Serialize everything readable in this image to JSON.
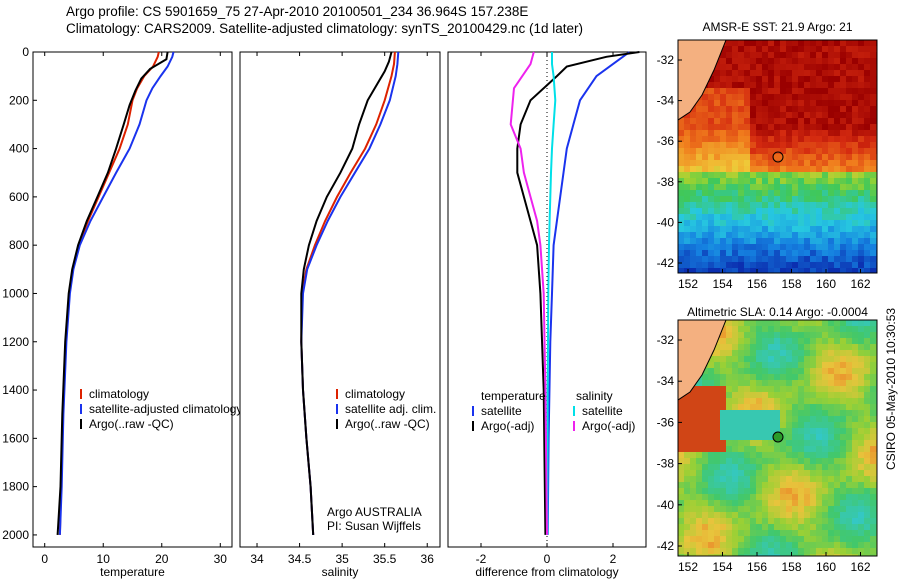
{
  "header": {
    "line1": "Argo profile: CS 5901659_75 27-Apr-2010 20100501_234 36.964S 157.238E",
    "line2": "Climatology: CARS2009. Satellite-adjusted climatology: synTS_20100429.nc (1d later)"
  },
  "colors": {
    "climatology": "#dd2200",
    "satellite": "#1a33ee",
    "argo": "#000000",
    "salinity_satellite": "#00e0e8",
    "salinity_argo": "#ee22ee"
  },
  "chart_data": [
    {
      "type": "line",
      "id": "temperature",
      "xlabel": "temperature",
      "xlim": [
        -2,
        32
      ],
      "ylim": [
        2050,
        0
      ],
      "xticks": [
        0,
        10,
        20,
        30
      ],
      "yticks": [
        0,
        200,
        400,
        600,
        800,
        1000,
        1200,
        1400,
        1600,
        1800,
        2000
      ],
      "legend": [
        "climatology",
        "satellite-adjusted climatology",
        "Argo(..raw -QC)"
      ],
      "series": [
        {
          "name": "climatology",
          "color": "#dd2200",
          "x": [
            19.5,
            19.3,
            18.5,
            17.0,
            15.8,
            15.0,
            14.2,
            12.8,
            11.0,
            9.2,
            7.4,
            5.8,
            4.8,
            4.2,
            3.6,
            3.1,
            2.8,
            2.6
          ],
          "y": [
            0,
            20,
            60,
            100,
            150,
            200,
            300,
            400,
            500,
            600,
            700,
            800,
            900,
            1000,
            1200,
            1500,
            1800,
            2000
          ]
        },
        {
          "name": "satellite-adjusted climatology",
          "color": "#1a33ee",
          "x": [
            22.0,
            21.8,
            21.0,
            19.8,
            18.4,
            17.4,
            16.2,
            14.5,
            12.2,
            10.0,
            7.8,
            6.0,
            4.9,
            4.3,
            3.7,
            3.2,
            2.9,
            2.6
          ],
          "y": [
            0,
            20,
            60,
            100,
            150,
            200,
            300,
            400,
            500,
            600,
            700,
            800,
            900,
            1000,
            1200,
            1500,
            1800,
            2000
          ]
        },
        {
          "name": "Argo(..raw -QC)",
          "color": "#000000",
          "x": [
            21.0,
            20.8,
            18.0,
            16.5,
            15.5,
            14.5,
            13.5,
            12.2,
            10.8,
            9.0,
            7.2,
            5.7,
            4.7,
            4.1,
            3.5,
            3.0,
            2.7,
            2.2
          ],
          "y": [
            0,
            30,
            70,
            110,
            160,
            220,
            300,
            400,
            500,
            600,
            700,
            800,
            900,
            1000,
            1200,
            1500,
            1800,
            2000
          ]
        }
      ]
    },
    {
      "type": "line",
      "id": "salinity",
      "xlabel": "salinity",
      "xlim": [
        33.8,
        36.15
      ],
      "ylim": [
        2050,
        0
      ],
      "xticks": [
        34,
        34.5,
        35,
        35.5,
        36
      ],
      "legend": [
        "climatology",
        "satellite adj. clim.",
        "Argo(..raw -QC)"
      ],
      "annotation": [
        "Argo AUSTRALIA",
        "PI: Susan Wijffels"
      ],
      "series": [
        {
          "name": "climatology",
          "color": "#dd2200",
          "x": [
            35.62,
            35.61,
            35.58,
            35.5,
            35.4,
            35.27,
            35.1,
            34.94,
            34.8,
            34.68,
            34.58,
            34.53,
            34.52,
            34.54,
            34.58,
            34.63,
            34.66
          ],
          "y": [
            0,
            50,
            100,
            200,
            300,
            400,
            500,
            600,
            700,
            800,
            900,
            1000,
            1200,
            1400,
            1600,
            1800,
            2000
          ]
        },
        {
          "name": "satellite adj. clim.",
          "color": "#1a33ee",
          "x": [
            35.66,
            35.65,
            35.63,
            35.56,
            35.45,
            35.32,
            35.15,
            34.98,
            34.83,
            34.7,
            34.59,
            34.54,
            34.52,
            34.54,
            34.58,
            34.63,
            34.66
          ],
          "y": [
            0,
            50,
            100,
            200,
            300,
            400,
            500,
            600,
            700,
            800,
            900,
            1000,
            1200,
            1400,
            1600,
            1800,
            2000
          ]
        },
        {
          "name": "Argo(..raw -QC)",
          "color": "#000000",
          "x": [
            35.58,
            35.55,
            35.5,
            35.3,
            35.2,
            35.12,
            34.98,
            34.82,
            34.7,
            34.61,
            34.55,
            34.52,
            34.52,
            34.54,
            34.58,
            34.63,
            34.66
          ],
          "y": [
            0,
            40,
            80,
            200,
            300,
            400,
            500,
            600,
            700,
            800,
            900,
            1000,
            1200,
            1400,
            1600,
            1800,
            2000
          ]
        }
      ]
    },
    {
      "type": "line",
      "id": "difference",
      "xlabel": "difference from climatology",
      "xlim": [
        -3,
        3
      ],
      "ylim": [
        2050,
        0
      ],
      "xticks": [
        -2,
        0,
        2
      ],
      "legend_left_title": "temperature",
      "legend_left": [
        "satellite",
        "Argo(-adj)"
      ],
      "legend_right_title": "salinity",
      "legend_right": [
        "satellite",
        "Argo(-adj)"
      ],
      "series": [
        {
          "name": "temperature satellite",
          "color": "#1a33ee",
          "x": [
            2.5,
            2.2,
            1.5,
            1.0,
            0.8,
            0.6,
            0.5,
            0.4,
            0.3,
            0.2,
            0.15,
            0.1,
            0.05,
            0.02
          ],
          "y": [
            0,
            30,
            100,
            200,
            300,
            400,
            500,
            600,
            700,
            800,
            1000,
            1200,
            1600,
            2000
          ]
        },
        {
          "name": "temperature Argo(-adj)",
          "color": "#000000",
          "x": [
            2.8,
            1.8,
            0.6,
            0.3,
            -0.5,
            -0.8,
            -0.9,
            -0.9,
            -0.7,
            -0.5,
            -0.3,
            -0.2,
            -0.1,
            -0.05
          ],
          "y": [
            0,
            20,
            60,
            100,
            200,
            300,
            400,
            500,
            600,
            700,
            800,
            1000,
            1400,
            2000
          ]
        },
        {
          "name": "salinity satellite",
          "color": "#00e0e8",
          "x": [
            0.15,
            0.15,
            0.2,
            0.25,
            0.2,
            0.15,
            0.12,
            0.1,
            0.08,
            0.06,
            0.04,
            0.02,
            0.01
          ],
          "y": [
            0,
            50,
            100,
            200,
            300,
            400,
            500,
            600,
            700,
            800,
            1000,
            1400,
            2000
          ]
        },
        {
          "name": "salinity Argo(-adj)",
          "color": "#ee22ee",
          "x": [
            -0.4,
            -0.5,
            -1.0,
            -1.1,
            -0.8,
            -0.7,
            -0.5,
            -0.3,
            -0.2,
            -0.1,
            -0.05,
            0.0
          ],
          "y": [
            0,
            50,
            150,
            300,
            400,
            500,
            600,
            700,
            800,
            1000,
            1400,
            2000
          ]
        }
      ]
    }
  ],
  "maps": [
    {
      "title": "AMSR-E SST: 21.9 Argo: 21",
      "xticks": [
        "152",
        "154",
        "156",
        "158",
        "160",
        "162"
      ],
      "yticks": [
        "-32",
        "-34",
        "-36",
        "-38",
        "-40",
        "-42"
      ],
      "colormap": "sst",
      "marker": "open-circle"
    },
    {
      "title": "Altimetric SLA: 0.14 Argo: -0.0004",
      "xticks": [
        "152",
        "154",
        "156",
        "158",
        "160",
        "162"
      ],
      "yticks": [
        "-32",
        "-34",
        "-36",
        "-38",
        "-40",
        "-42"
      ],
      "colormap": "sla",
      "marker": "green-circle"
    }
  ],
  "footer": {
    "vertical_stamp": "CSIRO 05-May-2010 10:30:53"
  }
}
